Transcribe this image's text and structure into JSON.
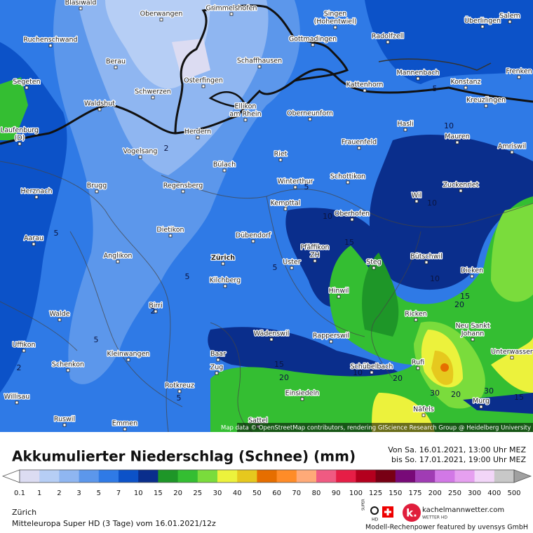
{
  "header": {
    "title": "Akkumulierter Niederschlag (Schnee) (mm)",
    "valid_from": "Von Sa. 16.01.2021, 13:00 Uhr MEZ",
    "valid_to": "bis So. 17.01.2021, 19:00 Uhr MEZ"
  },
  "legend": {
    "values": [
      0.1,
      1,
      2,
      3,
      5,
      7,
      10,
      15,
      20,
      25,
      30,
      40,
      50,
      60,
      70,
      80,
      90,
      100,
      125,
      150,
      175,
      200,
      250,
      300,
      400,
      500
    ],
    "colors": [
      "#dcdcf2",
      "#b6cef5",
      "#8fb6f1",
      "#5c97eb",
      "#2f7ae6",
      "#0c52c8",
      "#0a2e8c",
      "#1e9628",
      "#34be32",
      "#7adc3c",
      "#ecf23c",
      "#e6c81e",
      "#e66e00",
      "#ff8c28",
      "#ffaa78",
      "#f05a82",
      "#e61e46",
      "#b4001e",
      "#780014",
      "#780a78",
      "#a03cb4",
      "#d278e6",
      "#e6a0f0",
      "#f2d6f8",
      "#c8c8c8"
    ]
  },
  "map": {
    "places": [
      [
        "Blasiwald"
      ],
      [
        "Grimmelshofen"
      ],
      [
        "Oberwangen"
      ],
      [
        "Salem"
      ],
      [
        "Überlingen"
      ],
      [
        "Singen",
        "(Hohentwiel)"
      ],
      [
        "Ruchenschwand"
      ],
      [
        "Gottmadingen"
      ],
      [
        "Radolfzell"
      ],
      [
        "Berau"
      ],
      [
        "Schaffhausen"
      ],
      [
        "Mannenbach"
      ],
      [
        "Frenken"
      ],
      [
        "Segeten"
      ],
      [
        "Osterfingen"
      ],
      [
        "Schwerzen"
      ],
      [
        "Kattenhorn"
      ],
      [
        "Konstanz"
      ],
      [
        "Waldshut"
      ],
      [
        "Ellikon",
        "am Rhein"
      ],
      [
        "Oberneunforn"
      ],
      [
        "Kreuzlingen"
      ],
      [
        "Laufenburg",
        "(D)"
      ],
      [
        "Herdern"
      ],
      [
        "Hasli"
      ],
      [
        "Mauren"
      ],
      [
        "Frauenfeld"
      ],
      [
        "Amriswil"
      ],
      [
        "Vogelsang"
      ],
      [
        "Riet"
      ],
      [
        "Bülach"
      ],
      [
        "Schottikon"
      ],
      [
        "Herznach"
      ],
      [
        "Brugg"
      ],
      [
        "Regensberg"
      ],
      [
        "Winterthur"
      ],
      [
        "Zuckenriet"
      ],
      [
        "Wil"
      ],
      [
        "Kempttal"
      ],
      [
        "Oberhofen"
      ],
      [
        "Aarau"
      ],
      [
        "Dietikon"
      ],
      [
        "Dübendorf"
      ],
      [
        "Pfäffikon",
        "ZH"
      ],
      [
        "Bütschwil"
      ],
      [
        "Anglikon"
      ],
      [
        "Zürich"
      ],
      [
        "Uster"
      ],
      [
        "Steg"
      ],
      [
        "Dicken"
      ],
      [
        "Kilchberg"
      ],
      [
        "Hinwil"
      ],
      [
        "Birri"
      ],
      [
        "Ricken"
      ],
      [
        "Walde"
      ],
      [
        "Neu Sankt",
        "Johann"
      ],
      [
        "Wädenswil"
      ],
      [
        "Rapperswil"
      ],
      [
        "Uffikon"
      ],
      [
        "Kleinwangen"
      ],
      [
        "Unterwasser"
      ],
      [
        "Baar"
      ],
      [
        "Schenkon"
      ],
      [
        "Rufi"
      ],
      [
        "Zug"
      ],
      [
        "Schübelbach"
      ],
      [
        "Rotkreuz"
      ],
      [
        "Einsiedeln"
      ],
      [
        "Willisau"
      ],
      [
        "Murg"
      ],
      [
        "Näfels"
      ],
      [
        "Sattel"
      ],
      [
        "Ruswil"
      ],
      [
        "Emmen"
      ]
    ],
    "contour_labels": [
      5,
      10,
      2,
      5,
      10,
      10,
      15,
      5,
      5,
      10,
      5,
      15,
      20,
      2,
      5,
      2,
      15,
      20,
      10,
      20,
      30,
      20,
      30,
      5,
      15
    ],
    "attribution": "Map data © OpenStreetMap contributors, rendering GIScience Research Group @ Heidelberg University"
  },
  "footer": {
    "location": "Zürich",
    "model": "Mitteleuropa Super HD (3 Tage) vom 16.01.2021/12z",
    "badge": [
      "SUPER",
      "HD"
    ],
    "site": "kachelmannwetter.com",
    "site_sub": "WETTER HD",
    "sponsor": "Modell-Rechenpower featured by uvensys GmbH"
  }
}
